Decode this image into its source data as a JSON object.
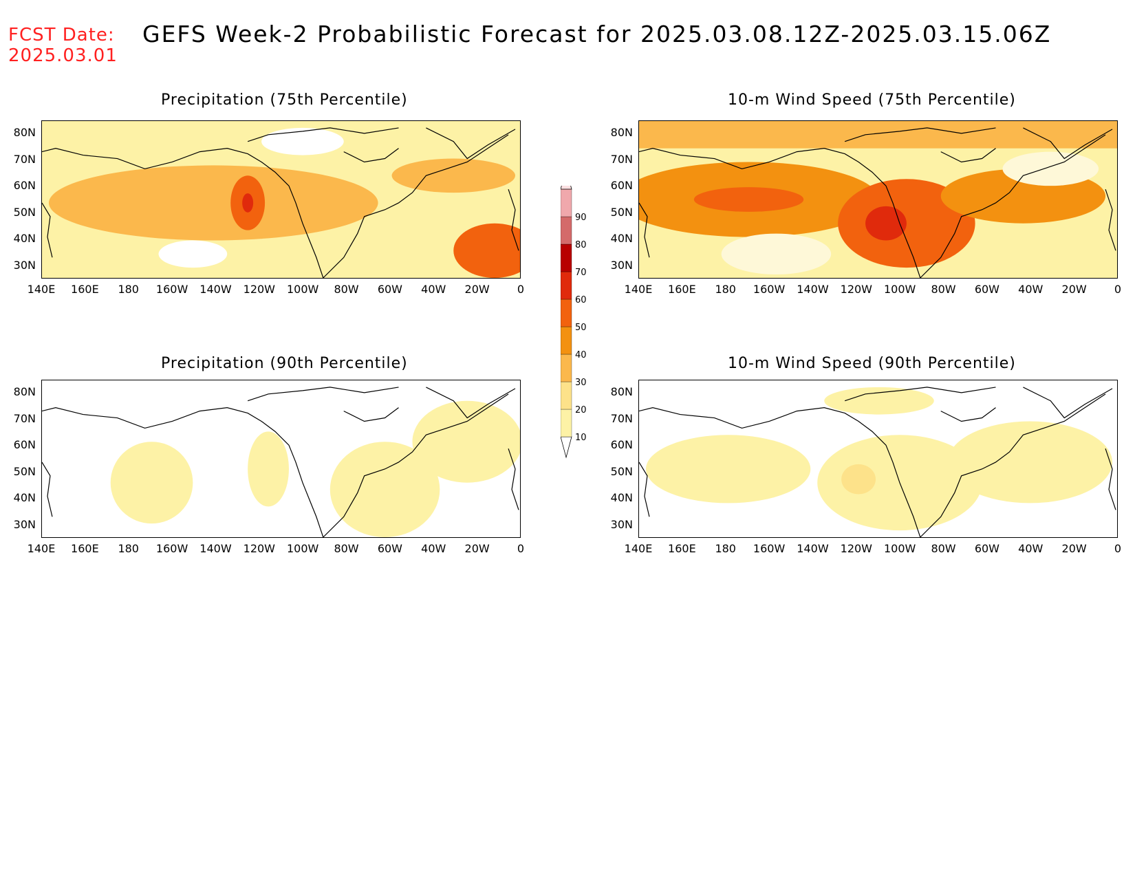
{
  "header": {
    "fcst_label": "FCST Date:",
    "fcst_date": "2025.03.01",
    "title": "GEFS Week-2 Probabilistic Forecast for 2025.03.08.12Z-2025.03.15.06Z"
  },
  "axes": {
    "lat_ticks": [
      "80N",
      "70N",
      "60N",
      "50N",
      "40N",
      "30N"
    ],
    "lon_ticks": [
      "140E",
      "160E",
      "180",
      "160W",
      "140W",
      "120W",
      "100W",
      "80W",
      "60W",
      "40W",
      "20W",
      "0"
    ]
  },
  "panels": [
    {
      "title": "Precipitation (75th Percentile)"
    },
    {
      "title": "10-m Wind Speed (75th Percentile)"
    },
    {
      "title": "Precipitation (90th Percentile)"
    },
    {
      "title": "10-m Wind Speed (90th Percentile)"
    }
  ],
  "colorbar": {
    "levels": [
      "10",
      "20",
      "30",
      "40",
      "50",
      "60",
      "70",
      "80",
      "90"
    ],
    "colors": [
      "#fdf2a6",
      "#fde28a",
      "#fbb84c",
      "#f39110",
      "#f2620e",
      "#e02a0c",
      "#b80000",
      "#d46a6a",
      "#f0a8ac",
      "#fbe0e2"
    ]
  }
}
